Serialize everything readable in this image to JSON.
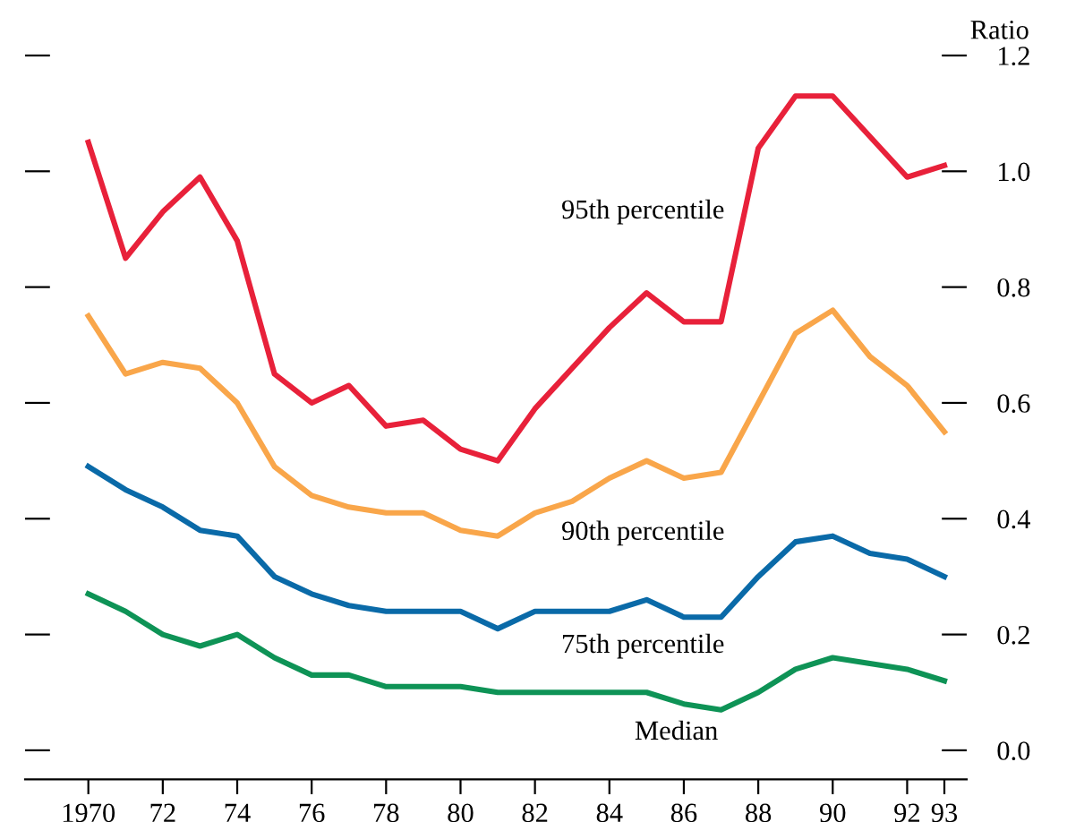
{
  "chart_data": {
    "type": "line",
    "ylabel": "Ratio",
    "x": [
      1970,
      1971,
      1972,
      1973,
      1974,
      1975,
      1976,
      1977,
      1978,
      1979,
      1980,
      1981,
      1982,
      1983,
      1984,
      1985,
      1986,
      1987,
      1988,
      1989,
      1990,
      1991,
      1992,
      1993
    ],
    "series": [
      {
        "name": "95th percentile",
        "color": "#e8213a",
        "values": [
          1.05,
          0.85,
          0.93,
          0.99,
          0.88,
          0.65,
          0.6,
          0.63,
          0.56,
          0.57,
          0.52,
          0.5,
          0.59,
          0.66,
          0.73,
          0.79,
          0.74,
          0.74,
          1.04,
          1.13,
          1.13,
          1.06,
          0.99,
          1.01
        ]
      },
      {
        "name": "90th percentile",
        "color": "#f9a64a",
        "values": [
          0.75,
          0.65,
          0.67,
          0.66,
          0.6,
          0.49,
          0.44,
          0.42,
          0.41,
          0.41,
          0.38,
          0.37,
          0.41,
          0.43,
          0.47,
          0.5,
          0.47,
          0.48,
          0.6,
          0.72,
          0.76,
          0.68,
          0.63,
          0.55
        ]
      },
      {
        "name": "75th percentile",
        "color": "#0a6aa8",
        "values": [
          0.49,
          0.45,
          0.42,
          0.38,
          0.37,
          0.3,
          0.27,
          0.25,
          0.24,
          0.24,
          0.24,
          0.21,
          0.24,
          0.24,
          0.24,
          0.26,
          0.23,
          0.23,
          0.3,
          0.36,
          0.37,
          0.34,
          0.33,
          0.3
        ]
      },
      {
        "name": "Median",
        "color": "#0e9356",
        "values": [
          0.27,
          0.24,
          0.2,
          0.18,
          0.2,
          0.16,
          0.13,
          0.13,
          0.11,
          0.11,
          0.11,
          0.1,
          0.1,
          0.1,
          0.1,
          0.1,
          0.08,
          0.07,
          0.1,
          0.14,
          0.16,
          0.15,
          0.14,
          0.12
        ]
      }
    ],
    "xlim": [
      1968.3,
      1993.6
    ],
    "ylim": [
      -0.05,
      1.2
    ],
    "xticks": [
      {
        "value": 1970,
        "label": "1970"
      },
      {
        "value": 1972,
        "label": "72"
      },
      {
        "value": 1974,
        "label": "74"
      },
      {
        "value": 1976,
        "label": "76"
      },
      {
        "value": 1978,
        "label": "78"
      },
      {
        "value": 1980,
        "label": "80"
      },
      {
        "value": 1982,
        "label": "82"
      },
      {
        "value": 1984,
        "label": "84"
      },
      {
        "value": 1986,
        "label": "86"
      },
      {
        "value": 1988,
        "label": "88"
      },
      {
        "value": 1990,
        "label": "90"
      },
      {
        "value": 1992,
        "label": "92"
      },
      {
        "value": 1993,
        "label": "93"
      }
    ],
    "yticks": [
      {
        "value": 0,
        "label": "0.0"
      },
      {
        "value": 0.2,
        "label": "0.2"
      },
      {
        "value": 0.4,
        "label": "0.4"
      },
      {
        "value": 0.6,
        "label": "0.6"
      },
      {
        "value": 0.8,
        "label": "0.8"
      },
      {
        "value": 1.0,
        "label": "1.0"
      },
      {
        "value": 1.2,
        "label": "1.2"
      }
    ],
    "grid": false,
    "legend": false,
    "marker": "none",
    "line_style": "solid"
  }
}
